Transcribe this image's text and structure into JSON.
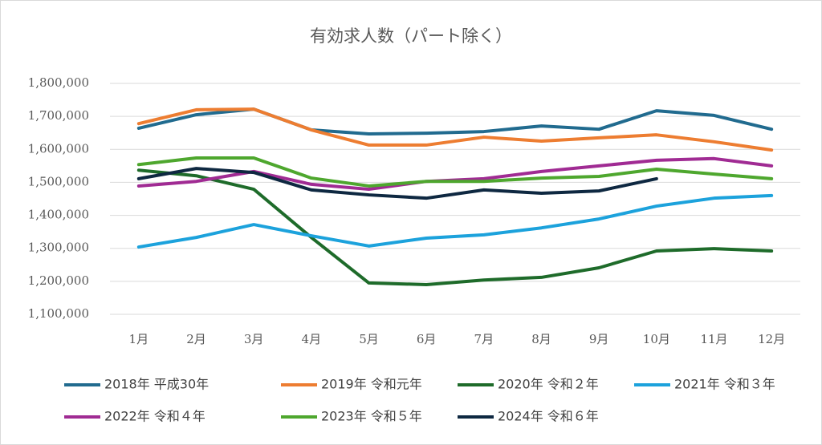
{
  "chart_data": {
    "type": "line",
    "title": "有効求人数（パート除く）",
    "categories": [
      "1月",
      "2月",
      "3月",
      "4月",
      "5月",
      "6月",
      "7月",
      "8月",
      "9月",
      "10月",
      "11月",
      "12月"
    ],
    "ylim": [
      1100000,
      1800000
    ],
    "yticks": [
      {
        "value": 1100000,
        "label": "1,100,000"
      },
      {
        "value": 1200000,
        "label": "1,200,000"
      },
      {
        "value": 1300000,
        "label": "1,300,000"
      },
      {
        "value": 1400000,
        "label": "1,400,000"
      },
      {
        "value": 1500000,
        "label": "1,500,000"
      },
      {
        "value": 1600000,
        "label": "1,600,000"
      },
      {
        "value": 1700000,
        "label": "1,700,000"
      },
      {
        "value": 1800000,
        "label": "1,800,000"
      }
    ],
    "grid": true,
    "series": [
      {
        "name": "2018年 平成30年",
        "color": "#216b8f",
        "values": [
          1664000,
          1705000,
          1722000,
          1659000,
          1647000,
          1649000,
          1654000,
          1671000,
          1661000,
          1717000,
          1703000,
          1661000
        ]
      },
      {
        "name": "2019年 令和元年",
        "color": "#ed7d31",
        "values": [
          1678000,
          1720000,
          1722000,
          1659000,
          1613000,
          1613000,
          1637000,
          1625000,
          1635000,
          1644000,
          1623000,
          1598000
        ]
      },
      {
        "name": "2020年 令和２年",
        "color": "#1e6b2a",
        "values": [
          1537000,
          1520000,
          1479000,
          1333000,
          1195000,
          1190000,
          1204000,
          1212000,
          1241000,
          1292000,
          1299000,
          1292000
        ]
      },
      {
        "name": "2021年 令和３年",
        "color": "#1ca2dc",
        "values": [
          1304000,
          1333000,
          1372000,
          1338000,
          1307000,
          1331000,
          1341000,
          1362000,
          1389000,
          1428000,
          1452000,
          1460000
        ]
      },
      {
        "name": "2022年 令和４年",
        "color": "#a02b93",
        "values": [
          1489000,
          1503000,
          1533000,
          1494000,
          1479000,
          1503000,
          1511000,
          1533000,
          1550000,
          1567000,
          1572000,
          1550000
        ]
      },
      {
        "name": "2023年 令和５年",
        "color": "#4ea72e",
        "values": [
          1554000,
          1574000,
          1574000,
          1513000,
          1489000,
          1503000,
          1503000,
          1513000,
          1518000,
          1540000,
          1525000,
          1511000
        ]
      },
      {
        "name": "2024年 令和６年",
        "color": "#0e2841",
        "values": [
          1511000,
          1542000,
          1530000,
          1477000,
          1462000,
          1452000,
          1477000,
          1467000,
          1474000,
          1511000,
          null,
          null
        ]
      }
    ]
  }
}
